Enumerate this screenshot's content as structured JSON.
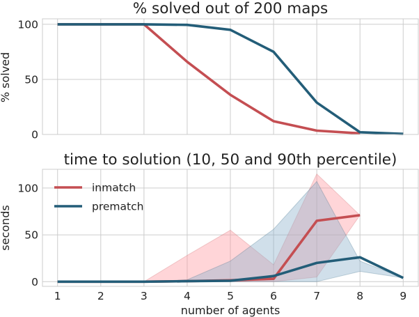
{
  "chart_data": [
    {
      "type": "line",
      "title": "% solved out of 200 maps",
      "ylabel": "% solved",
      "xlabel": "",
      "x": [
        1,
        2,
        3,
        4,
        5,
        6,
        7,
        8,
        9
      ],
      "xlim": [
        0.65,
        9.35
      ],
      "ylim": [
        0,
        105
      ],
      "yticks": [
        0,
        50,
        100
      ],
      "grid": true,
      "series": [
        {
          "key": "inmatch",
          "color": "#c44e52",
          "values": [
            100,
            100,
            100,
            66,
            36,
            12,
            3.5,
            1,
            null
          ]
        },
        {
          "key": "prematch",
          "color": "#235d78",
          "values": [
            100,
            100,
            100,
            99.5,
            95,
            75,
            29,
            2,
            0.5
          ]
        }
      ]
    },
    {
      "type": "line",
      "title": "time to solution (10, 50 and 90th percentile)",
      "ylabel": "seconds",
      "xlabel": "number of agents",
      "x": [
        1,
        2,
        3,
        4,
        5,
        6,
        7,
        8,
        9
      ],
      "xticks": [
        1,
        2,
        3,
        4,
        5,
        6,
        7,
        8,
        9
      ],
      "xlim": [
        0.65,
        9.35
      ],
      "ylim": [
        -5,
        120
      ],
      "yticks": [
        0,
        50,
        100
      ],
      "grid": true,
      "legend": "upper-left",
      "series": [
        {
          "name": "inmatch",
          "color": "#c44e52",
          "band_color": "#ff9aa2",
          "median": [
            0,
            0,
            0,
            0.5,
            1.5,
            3,
            65,
            71,
            null
          ],
          "p10": [
            0,
            0,
            0,
            0,
            0,
            0,
            5,
            71,
            null
          ],
          "p90": [
            0,
            0,
            0,
            28,
            55,
            18,
            115,
            71,
            null
          ]
        },
        {
          "name": "prematch",
          "color": "#235d78",
          "band_color": "#8fb3cc",
          "median": [
            0,
            0,
            0,
            0.5,
            1,
            6,
            20,
            26,
            4
          ],
          "p10": [
            0,
            0,
            0,
            0,
            0,
            0,
            0,
            11,
            4
          ],
          "p90": [
            0,
            0,
            0,
            2,
            22,
            56,
            107,
            22,
            4
          ]
        }
      ]
    }
  ]
}
